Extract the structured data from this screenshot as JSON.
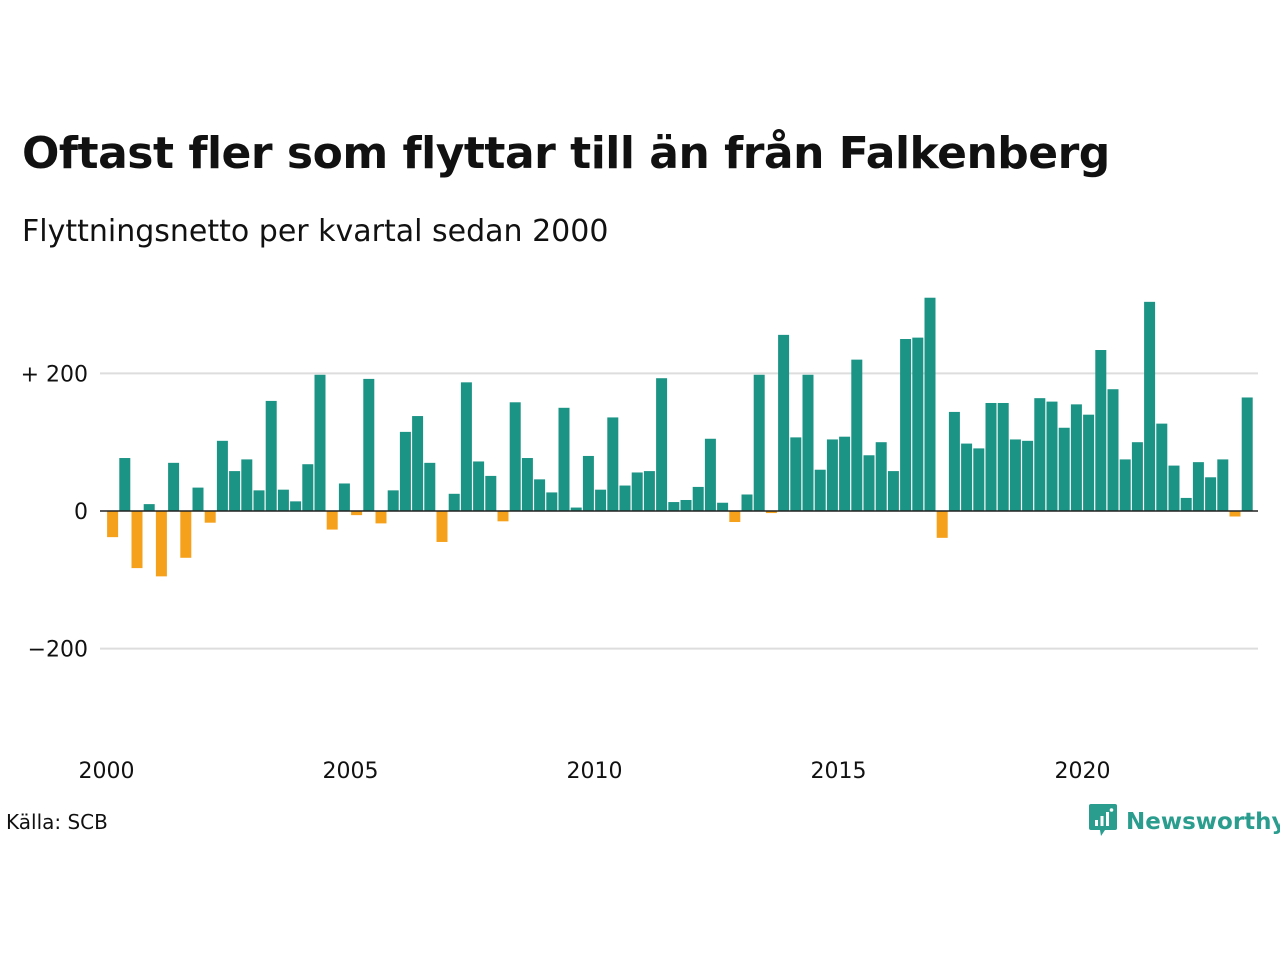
{
  "title": "Oftast fler som flyttar till än från Falkenberg",
  "subtitle": "Flyttningsnetto per kvartal sedan 2000",
  "source": "Källa: SCB",
  "brand": {
    "name": "Newsworthy",
    "icon": "newsworthy-logo-icon"
  },
  "colors": {
    "positive": "#1b9385",
    "negative": "#f5a11c",
    "grid": "#dddddd",
    "zero_line": "#222222",
    "brand": "#2a9d8f"
  },
  "chart_data": {
    "type": "bar",
    "title": "Oftast fler som flyttar till än från Falkenberg",
    "subtitle": "Flyttningsnetto per kvartal sedan 2000",
    "x_start": 2000.0,
    "x_step": 0.25,
    "x_ticks": [
      2000,
      2005,
      2010,
      2015,
      2020
    ],
    "x_tick_labels": [
      "2000",
      "2005",
      "2010",
      "2015",
      "2020"
    ],
    "y_ticks": [
      200,
      0,
      -200
    ],
    "y_tick_labels": [
      "+ 200",
      "0",
      "−200"
    ],
    "ylim": [
      -330,
      330
    ],
    "grid": true,
    "values": [
      -38,
      77,
      -83,
      10,
      -95,
      70,
      -68,
      34,
      -17,
      102,
      58,
      75,
      30,
      160,
      31,
      14,
      68,
      198,
      -27,
      40,
      -6,
      192,
      -18,
      30,
      115,
      138,
      70,
      -45,
      25,
      187,
      72,
      51,
      -15,
      158,
      77,
      46,
      27,
      150,
      5,
      80,
      31,
      136,
      37,
      56,
      58,
      193,
      13,
      16,
      35,
      105,
      12,
      -16,
      24,
      198,
      -3,
      256,
      107,
      198,
      60,
      104,
      108,
      220,
      81,
      100,
      58,
      250,
      252,
      310,
      -39,
      144,
      98,
      91,
      157,
      157,
      104,
      102,
      164,
      159,
      121,
      155,
      140,
      234,
      177,
      75,
      100,
      304,
      127,
      66,
      19,
      71,
      49,
      75,
      -8,
      165
    ]
  }
}
